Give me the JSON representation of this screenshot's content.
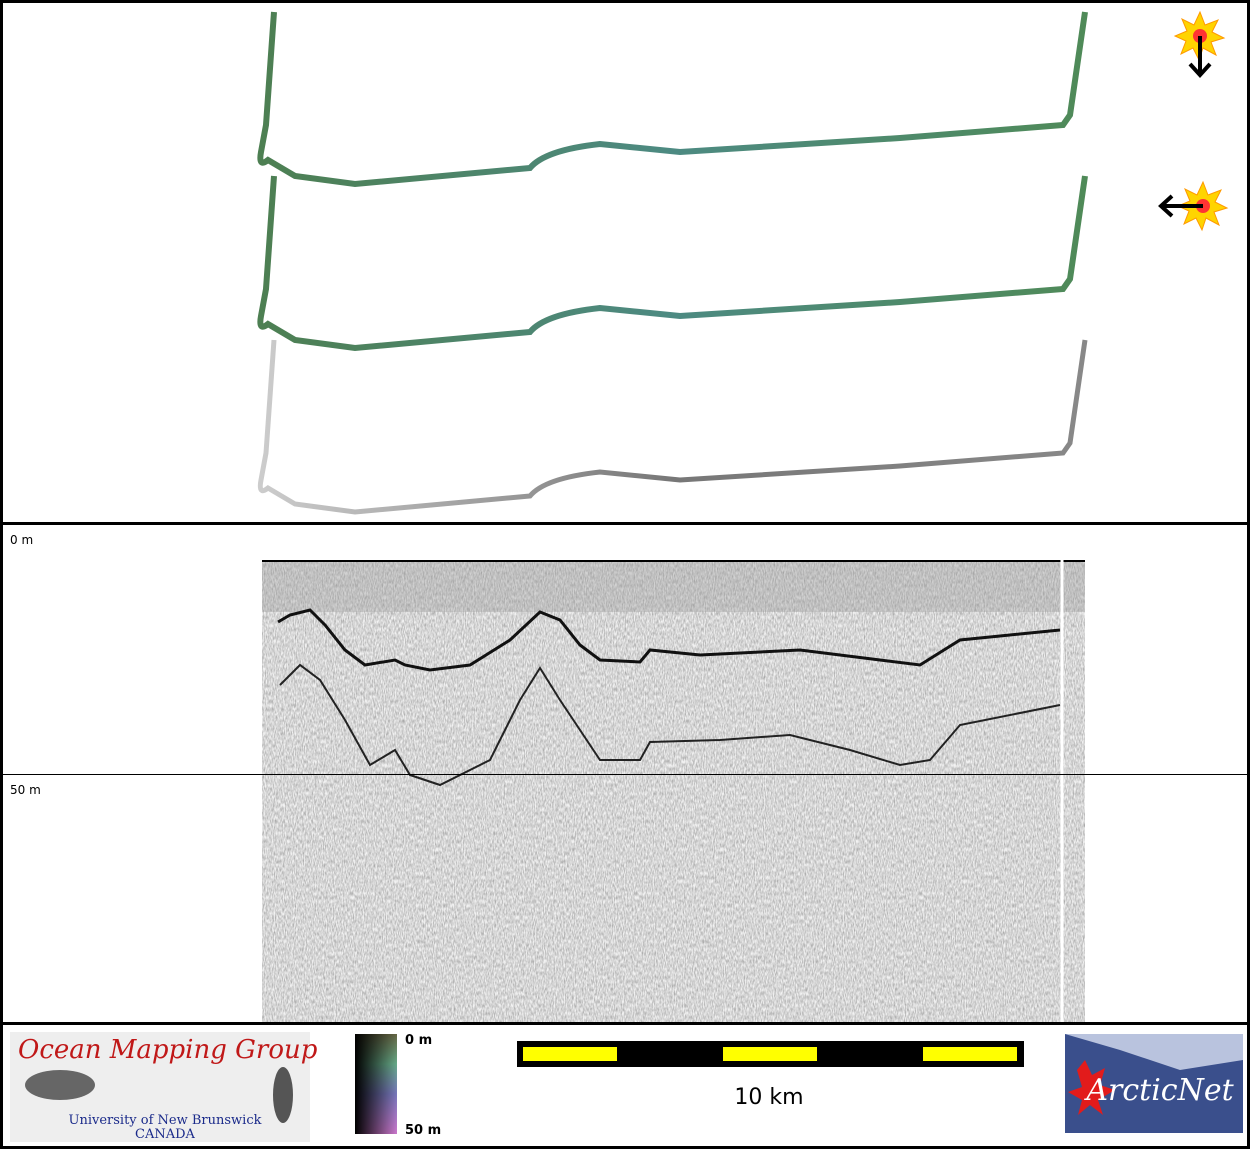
{
  "profile": {
    "depth_labels": [
      "0 m",
      "50 m"
    ]
  },
  "legend": {
    "top": "0 m",
    "bottom": "50 m"
  },
  "scale_bar": {
    "label": "10 km"
  },
  "logos": {
    "left": {
      "title": "Ocean Mapping Group",
      "line1": "University of New Brunswick",
      "line2": "CANADA"
    },
    "right": {
      "title": "ArcticNet"
    }
  }
}
